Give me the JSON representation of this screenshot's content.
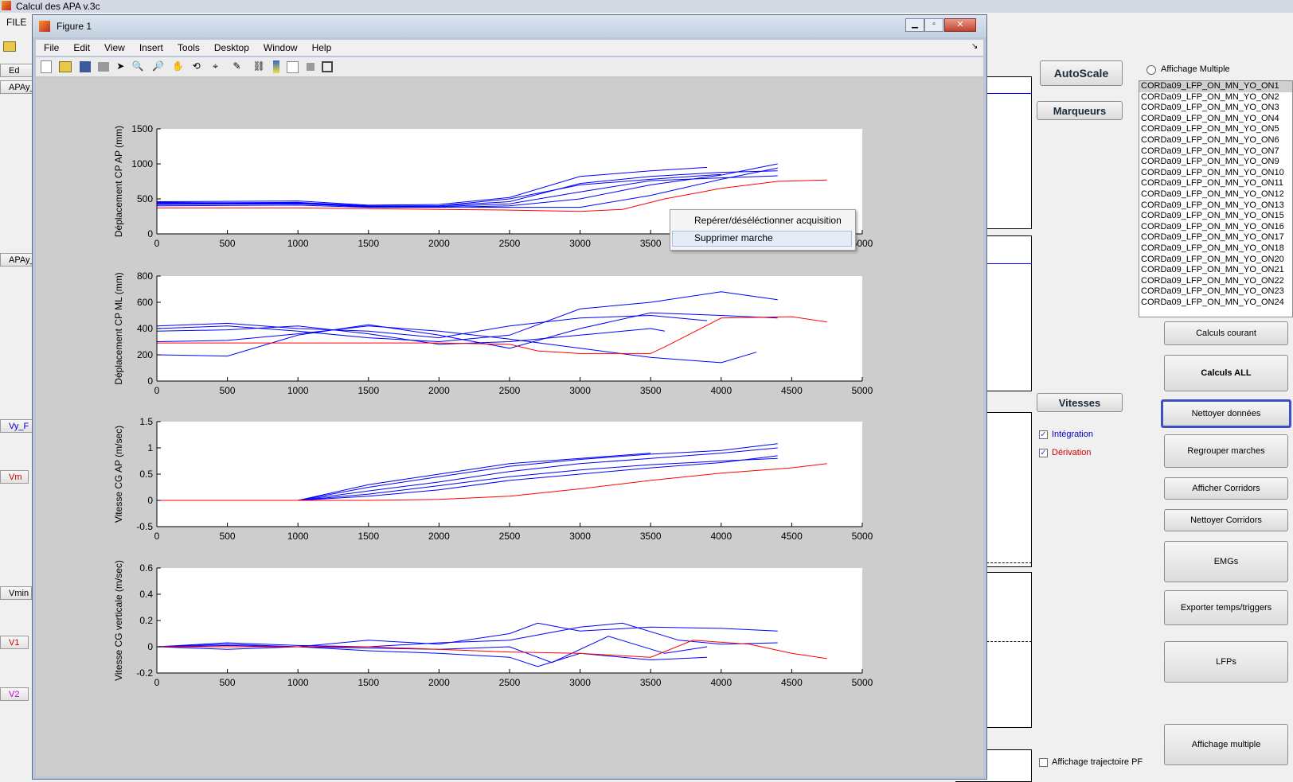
{
  "app": {
    "title": "Calcul des APA v.3c",
    "menu_file": "FILE",
    "colors": {
      "blue": "#0000ff",
      "red": "#ff0000"
    }
  },
  "left_panel": {
    "buttons": [
      "APAy_",
      "APAy_",
      "Vy_F",
      "Vm",
      "Vmin",
      "V1",
      "V2"
    ],
    "partial_label": "Ed"
  },
  "right_panel": {
    "autoscale": "AutoScale",
    "marqueurs": "Marqueurs",
    "vitesses": "Vitesses",
    "integration_label": "Intégration",
    "derivation_label": "Dérivation",
    "affichage_multiple_radio": "Affichage Multiple",
    "affichage_trajectoire": "Affichage trajectoire PF",
    "listbox_items": [
      "CORDa09_LFP_ON_MN_YO_ON1",
      "CORDa09_LFP_ON_MN_YO_ON2",
      "CORDa09_LFP_ON_MN_YO_ON3",
      "CORDa09_LFP_ON_MN_YO_ON4",
      "CORDa09_LFP_ON_MN_YO_ON5",
      "CORDa09_LFP_ON_MN_YO_ON6",
      "CORDa09_LFP_ON_MN_YO_ON7",
      "CORDa09_LFP_ON_MN_YO_ON9",
      "CORDa09_LFP_ON_MN_YO_ON10",
      "CORDa09_LFP_ON_MN_YO_ON11",
      "CORDa09_LFP_ON_MN_YO_ON12",
      "CORDa09_LFP_ON_MN_YO_ON13",
      "CORDa09_LFP_ON_MN_YO_ON15",
      "CORDa09_LFP_ON_MN_YO_ON16",
      "CORDa09_LFP_ON_MN_YO_ON17",
      "CORDa09_LFP_ON_MN_YO_ON18",
      "CORDa09_LFP_ON_MN_YO_ON20",
      "CORDa09_LFP_ON_MN_YO_ON21",
      "CORDa09_LFP_ON_MN_YO_ON22",
      "CORDa09_LFP_ON_MN_YO_ON23",
      "CORDa09_LFP_ON_MN_YO_ON24"
    ],
    "actions": [
      "Calculs courant",
      "Calculs ALL",
      "Nettoyer données",
      "Regrouper marches",
      "Afficher Corridors",
      "Nettoyer Corridors",
      "EMGs",
      "Exporter temps/triggers",
      "LFPs",
      "Affichage multiple"
    ]
  },
  "figure": {
    "title": "Figure 1",
    "menus": [
      "File",
      "Edit",
      "View",
      "Insert",
      "Tools",
      "Desktop",
      "Window",
      "Help"
    ],
    "context_menu": [
      "Repérer/déséléctionner acquisition",
      "Supprimer marche"
    ]
  },
  "chart_data": [
    {
      "type": "line",
      "ylabel": "Déplacement CP AP (mm)",
      "xlim": [
        0,
        5000
      ],
      "ylim": [
        0,
        1500
      ],
      "xticks": [
        0,
        500,
        1000,
        1500,
        2000,
        2500,
        3000,
        3500,
        4000,
        4500,
        5000
      ],
      "yticks": [
        0,
        500,
        1000,
        1500
      ],
      "series_blue": [
        [
          [
            0,
            440
          ],
          [
            1000,
            450
          ],
          [
            1500,
            400
          ],
          [
            2000,
            400
          ],
          [
            2500,
            460
          ],
          [
            3000,
            720
          ],
          [
            3500,
            820
          ],
          [
            4000,
            880
          ],
          [
            4400,
            900
          ]
        ],
        [
          [
            0,
            420
          ],
          [
            1000,
            430
          ],
          [
            1500,
            390
          ],
          [
            2000,
            390
          ],
          [
            2500,
            430
          ],
          [
            3000,
            600
          ],
          [
            3500,
            760
          ],
          [
            4000,
            800
          ],
          [
            4400,
            830
          ]
        ],
        [
          [
            0,
            460
          ],
          [
            1000,
            470
          ],
          [
            1500,
            410
          ],
          [
            2000,
            420
          ],
          [
            2500,
            520
          ],
          [
            3000,
            820
          ],
          [
            3500,
            900
          ],
          [
            3900,
            950
          ]
        ],
        [
          [
            0,
            400
          ],
          [
            1000,
            410
          ],
          [
            1500,
            380
          ],
          [
            2000,
            380
          ],
          [
            2500,
            400
          ],
          [
            3000,
            500
          ],
          [
            3500,
            700
          ],
          [
            4000,
            840
          ],
          [
            4400,
            1000
          ]
        ],
        [
          [
            0,
            450
          ],
          [
            1000,
            440
          ],
          [
            1500,
            395
          ],
          [
            2000,
            400
          ],
          [
            2500,
            500
          ],
          [
            3000,
            700
          ],
          [
            3500,
            780
          ],
          [
            4000,
            850
          ]
        ],
        [
          [
            0,
            430
          ],
          [
            1000,
            435
          ],
          [
            1500,
            385
          ],
          [
            2000,
            385
          ],
          [
            2500,
            380
          ],
          [
            3000,
            380
          ],
          [
            3500,
            550
          ],
          [
            4000,
            780
          ],
          [
            4400,
            940
          ]
        ]
      ],
      "series_red": [
        [
          0,
          370
        ],
        [
          1000,
          370
        ],
        [
          1500,
          360
        ],
        [
          2000,
          350
        ],
        [
          2500,
          340
        ],
        [
          3000,
          320
        ],
        [
          3300,
          350
        ],
        [
          3600,
          500
        ],
        [
          4000,
          650
        ],
        [
          4400,
          750
        ],
        [
          4750,
          770
        ]
      ]
    },
    {
      "type": "line",
      "ylabel": "Déplacement CP ML (mm)",
      "xlim": [
        0,
        5000
      ],
      "ylim": [
        0,
        800
      ],
      "xticks": [
        0,
        500,
        1000,
        1500,
        2000,
        2500,
        3000,
        3500,
        4000,
        4500,
        5000
      ],
      "yticks": [
        0,
        200,
        400,
        600,
        800
      ],
      "series_blue": [
        [
          [
            0,
            400
          ],
          [
            500,
            420
          ],
          [
            1000,
            380
          ],
          [
            1500,
            330
          ],
          [
            2000,
            300
          ],
          [
            2500,
            350
          ],
          [
            3000,
            550
          ],
          [
            3500,
            600
          ],
          [
            4000,
            680
          ],
          [
            4400,
            620
          ]
        ],
        [
          [
            0,
            300
          ],
          [
            500,
            310
          ],
          [
            1000,
            360
          ],
          [
            1500,
            420
          ],
          [
            2000,
            380
          ],
          [
            2500,
            320
          ],
          [
            3000,
            250
          ],
          [
            3500,
            180
          ],
          [
            4000,
            140
          ],
          [
            4250,
            220
          ]
        ],
        [
          [
            0,
            200
          ],
          [
            500,
            190
          ],
          [
            1000,
            350
          ],
          [
            1500,
            430
          ],
          [
            2000,
            350
          ],
          [
            2500,
            250
          ],
          [
            3000,
            400
          ],
          [
            3500,
            520
          ],
          [
            4000,
            500
          ],
          [
            4400,
            480
          ]
        ],
        [
          [
            0,
            420
          ],
          [
            500,
            440
          ],
          [
            1000,
            400
          ],
          [
            1500,
            380
          ],
          [
            2000,
            330
          ],
          [
            2500,
            420
          ],
          [
            3000,
            480
          ],
          [
            3500,
            500
          ],
          [
            3900,
            460
          ]
        ],
        [
          [
            0,
            380
          ],
          [
            500,
            390
          ],
          [
            1000,
            420
          ],
          [
            1500,
            360
          ],
          [
            2000,
            280
          ],
          [
            2500,
            300
          ],
          [
            3000,
            350
          ],
          [
            3500,
            400
          ],
          [
            3600,
            380
          ]
        ]
      ],
      "series_red": [
        [
          0,
          290
        ],
        [
          1000,
          290
        ],
        [
          1500,
          290
        ],
        [
          2000,
          290
        ],
        [
          2500,
          280
        ],
        [
          2700,
          230
        ],
        [
          3000,
          210
        ],
        [
          3500,
          210
        ],
        [
          3600,
          260
        ],
        [
          4000,
          480
        ],
        [
          4500,
          490
        ],
        [
          4750,
          450
        ]
      ]
    },
    {
      "type": "line",
      "ylabel": "Vitesse CG AP (m/sec)",
      "xlim": [
        0,
        5000
      ],
      "ylim": [
        -0.5,
        1.5
      ],
      "xticks": [
        0,
        500,
        1000,
        1500,
        2000,
        2500,
        3000,
        3500,
        4000,
        4500,
        5000
      ],
      "yticks": [
        -0.5,
        0,
        0.5,
        1,
        1.5
      ],
      "series_blue": [
        [
          [
            0,
            0
          ],
          [
            1000,
            0
          ],
          [
            1500,
            0.25
          ],
          [
            2000,
            0.45
          ],
          [
            2500,
            0.65
          ],
          [
            3000,
            0.78
          ],
          [
            3500,
            0.88
          ],
          [
            4000,
            0.95
          ],
          [
            4400,
            1.08
          ]
        ],
        [
          [
            0,
            0
          ],
          [
            1000,
            0
          ],
          [
            1500,
            0.18
          ],
          [
            2000,
            0.35
          ],
          [
            2500,
            0.55
          ],
          [
            3000,
            0.7
          ],
          [
            3500,
            0.8
          ],
          [
            4000,
            0.9
          ],
          [
            4400,
            1.0
          ]
        ],
        [
          [
            0,
            0
          ],
          [
            1000,
            0
          ],
          [
            1500,
            0.12
          ],
          [
            2000,
            0.28
          ],
          [
            2500,
            0.45
          ],
          [
            3000,
            0.58
          ],
          [
            3500,
            0.68
          ],
          [
            4000,
            0.75
          ],
          [
            4400,
            0.8
          ]
        ],
        [
          [
            0,
            0
          ],
          [
            1000,
            0
          ],
          [
            1500,
            0.3
          ],
          [
            2000,
            0.5
          ],
          [
            2500,
            0.7
          ],
          [
            3000,
            0.8
          ],
          [
            3500,
            0.9
          ]
        ],
        [
          [
            0,
            0
          ],
          [
            1000,
            0
          ],
          [
            1500,
            0.08
          ],
          [
            2000,
            0.2
          ],
          [
            2500,
            0.38
          ],
          [
            3000,
            0.5
          ],
          [
            3500,
            0.62
          ],
          [
            4000,
            0.72
          ],
          [
            4400,
            0.85
          ]
        ]
      ],
      "series_red": [
        [
          0,
          0
        ],
        [
          1000,
          0
        ],
        [
          1500,
          0
        ],
        [
          2000,
          0.02
        ],
        [
          2500,
          0.08
        ],
        [
          3000,
          0.22
        ],
        [
          3500,
          0.38
        ],
        [
          4000,
          0.52
        ],
        [
          4500,
          0.62
        ],
        [
          4750,
          0.7
        ]
      ]
    },
    {
      "type": "line",
      "ylabel": "Vitesse CG verticale (m/sec)",
      "xlim": [
        0,
        5000
      ],
      "ylim": [
        -0.2,
        0.6
      ],
      "xticks": [
        0,
        500,
        1000,
        1500,
        2000,
        2500,
        3000,
        3500,
        4000,
        4500,
        5000
      ],
      "yticks": [
        -0.2,
        0,
        0.2,
        0.4,
        0.6
      ],
      "series_blue": [
        [
          [
            0,
            0
          ],
          [
            500,
            0.02
          ],
          [
            1000,
            0
          ],
          [
            1500,
            0.05
          ],
          [
            2000,
            0.02
          ],
          [
            2500,
            0.1
          ],
          [
            2700,
            0.18
          ],
          [
            3000,
            0.12
          ],
          [
            3500,
            0.15
          ],
          [
            4000,
            0.14
          ],
          [
            4400,
            0.12
          ]
        ],
        [
          [
            0,
            0
          ],
          [
            500,
            -0.02
          ],
          [
            1000,
            0
          ],
          [
            1500,
            -0.03
          ],
          [
            2000,
            -0.05
          ],
          [
            2500,
            -0.08
          ],
          [
            2700,
            -0.15
          ],
          [
            3000,
            -0.05
          ],
          [
            3500,
            -0.1
          ],
          [
            3900,
            -0.08
          ]
        ],
        [
          [
            0,
            0
          ],
          [
            500,
            0.03
          ],
          [
            1000,
            0.01
          ],
          [
            1500,
            0.0
          ],
          [
            2000,
            0.03
          ],
          [
            2500,
            0.05
          ],
          [
            3000,
            0.15
          ],
          [
            3300,
            0.18
          ],
          [
            3700,
            0.05
          ],
          [
            4000,
            0.02
          ],
          [
            4400,
            0.03
          ]
        ],
        [
          [
            0,
            0
          ],
          [
            500,
            0.01
          ],
          [
            1000,
            0
          ],
          [
            1500,
            -0.01
          ],
          [
            2000,
            -0.02
          ],
          [
            2500,
            0.0
          ],
          [
            2800,
            -0.12
          ],
          [
            3200,
            0.08
          ],
          [
            3600,
            -0.05
          ],
          [
            3900,
            0.0
          ]
        ]
      ],
      "series_red": [
        [
          0,
          0
        ],
        [
          1000,
          0
        ],
        [
          1500,
          0
        ],
        [
          2000,
          -0.02
        ],
        [
          2500,
          -0.04
        ],
        [
          3000,
          -0.05
        ],
        [
          3500,
          -0.08
        ],
        [
          3800,
          0.05
        ],
        [
          4200,
          0.02
        ],
        [
          4500,
          -0.05
        ],
        [
          4750,
          -0.09
        ]
      ]
    }
  ]
}
